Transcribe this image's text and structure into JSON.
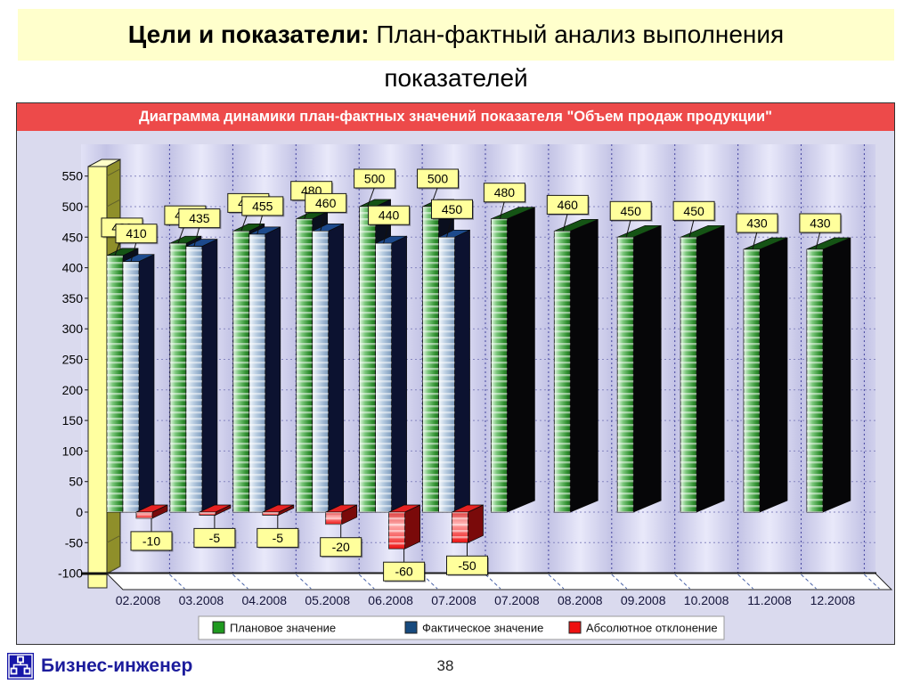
{
  "slide": {
    "title": {
      "bold": "Цели и показатели:",
      "regular": " План-фактный анализ выполнения",
      "line2": "показателей"
    },
    "footer": {
      "brand": "Бизнес-инженер",
      "page_number": "38",
      "logo_icon": "org-chart-icon"
    }
  },
  "chart_data": {
    "type": "bar",
    "style": "3d-clustered",
    "title": "Диаграмма динамики план-фактных значений показателя \"Объем продаж продукции\"",
    "categories": [
      "02.2008",
      "03.2008",
      "04.2008",
      "05.2008",
      "06.2008",
      "07.2008",
      "07.2008",
      "08.2008",
      "09.2008",
      "10.2008",
      "11.2008",
      "12.2008"
    ],
    "series": [
      {
        "name": "Плановое значение",
        "color": "#1f9a1f",
        "values": [
          420,
          440,
          460,
          480,
          500,
          500,
          480,
          460,
          450,
          450,
          430,
          430
        ]
      },
      {
        "name": "Фактическое значение",
        "color": "#174a7e",
        "values": [
          410,
          435,
          455,
          460,
          440,
          450,
          null,
          null,
          null,
          null,
          null,
          null
        ]
      },
      {
        "name": "Абсолютное отклонение",
        "color": "#ee1111",
        "values": [
          -10,
          -5,
          -5,
          -20,
          -60,
          -50,
          null,
          null,
          null,
          null,
          null,
          null
        ]
      }
    ],
    "ylim": [
      -100,
      550
    ],
    "ytick_step": 50,
    "grid": true,
    "legend_position": "bottom",
    "value_labels": true
  },
  "colors": {
    "chart_header_bg": "#ed4a4a",
    "chart_header_text": "#ffffff",
    "label_box": "#ffff9c",
    "plot_bg_light": "#e9e9fa",
    "plot_bg_dark": "#c3c3e5",
    "margin_bg": "#dadaee",
    "wall_front": "#ffffa0",
    "wall_side": "#8f8f2a",
    "floor": "#ffffff",
    "title_band_bg": "#ffffcc",
    "brand_blue": "#1c1c9c"
  }
}
